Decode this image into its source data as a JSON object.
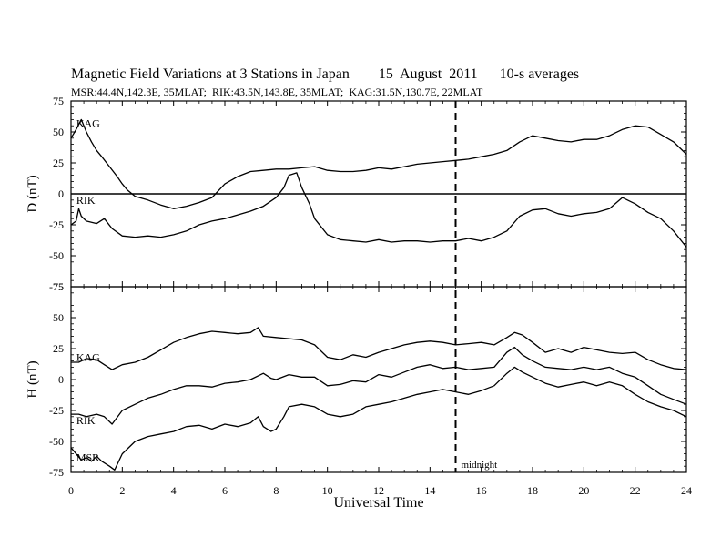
{
  "header": {
    "title": "Magnetic Field Variations at 3 Stations in Japan        15  August  2011      10-s averages",
    "subtitle": "MSR:44.4N,142.3E, 35MLAT;  RIK:43.5N,143.8E, 35MLAT;  KAG:31.5N,130.7E, 22MLAT"
  },
  "chart_data": {
    "type": "line",
    "title": "Magnetic Field Variations at 3 Stations in Japan",
    "date": "15  August  2011",
    "note": "10-s averages",
    "xlabel": "Universal Time",
    "xlim": [
      0,
      24
    ],
    "x_ticks": [
      0,
      2,
      4,
      6,
      8,
      10,
      12,
      14,
      16,
      18,
      20,
      22,
      24
    ],
    "midnight": {
      "x": 15,
      "label": "midnight"
    },
    "panels": [
      {
        "id": "D",
        "ylabel": "D (nT)",
        "ylim": [
          -75,
          75
        ],
        "y_ticks": [
          -75,
          -50,
          -25,
          0,
          25,
          50,
          75
        ],
        "zero_line": true,
        "series": [
          {
            "name": "KAG",
            "label_at": [
              0.1,
              57
            ],
            "x": [
              0,
              0.2,
              0.4,
              0.6,
              0.8,
              1.0,
              1.2,
              1.5,
              1.8,
              2.0,
              2.2,
              2.5,
              3.0,
              3.5,
              4.0,
              4.5,
              5.0,
              5.5,
              6.0,
              6.5,
              7.0,
              7.5,
              8.0,
              8.5,
              9.0,
              9.5,
              10.0,
              10.5,
              11.0,
              11.5,
              12.0,
              12.5,
              13.0,
              13.5,
              14.0,
              14.5,
              15.0,
              15.5,
              16.0,
              16.5,
              17.0,
              17.5,
              18.0,
              18.5,
              19.0,
              19.5,
              20.0,
              20.5,
              21.0,
              21.5,
              22.0,
              22.5,
              23.0,
              23.5,
              24.0
            ],
            "y": [
              45,
              52,
              60,
              50,
              42,
              35,
              30,
              22,
              14,
              8,
              3,
              -2,
              -5,
              -9,
              -12,
              -10,
              -7,
              -3,
              8,
              14,
              18,
              19,
              20,
              20,
              21,
              22,
              19,
              18,
              18,
              19,
              21,
              20,
              22,
              24,
              25,
              26,
              27,
              28,
              30,
              32,
              35,
              42,
              47,
              45,
              43,
              42,
              44,
              44,
              47,
              52,
              55,
              54,
              48,
              42,
              32
            ]
          },
          {
            "name": "RIK",
            "label_at": [
              0.1,
              -5
            ],
            "x": [
              0,
              0.2,
              0.3,
              0.4,
              0.6,
              1.0,
              1.3,
              1.6,
              2.0,
              2.5,
              3.0,
              3.5,
              4.0,
              4.5,
              5.0,
              5.5,
              6.0,
              6.5,
              7.0,
              7.5,
              8.0,
              8.3,
              8.5,
              8.8,
              9.0,
              9.3,
              9.5,
              10.0,
              10.5,
              11.0,
              11.5,
              12.0,
              12.5,
              13.0,
              13.5,
              14.0,
              14.5,
              15.0,
              15.5,
              16.0,
              16.5,
              17.0,
              17.5,
              18.0,
              18.5,
              19.0,
              19.5,
              20.0,
              20.5,
              21.0,
              21.5,
              22.0,
              22.5,
              23.0,
              23.5,
              24.0
            ],
            "y": [
              -25,
              -22,
              -12,
              -18,
              -22,
              -24,
              -20,
              -28,
              -34,
              -35,
              -34,
              -35,
              -33,
              -30,
              -25,
              -22,
              -20,
              -17,
              -14,
              -10,
              -3,
              5,
              15,
              17,
              5,
              -8,
              -20,
              -33,
              -37,
              -38,
              -39,
              -37,
              -39,
              -38,
              -38,
              -39,
              -38,
              -38,
              -36,
              -38,
              -35,
              -30,
              -18,
              -13,
              -12,
              -16,
              -18,
              -16,
              -15,
              -12,
              -3,
              -8,
              -15,
              -20,
              -30,
              -43
            ]
          }
        ]
      },
      {
        "id": "H",
        "ylabel": "H (nT)",
        "ylim": [
          -75,
          75
        ],
        "y_ticks": [
          -75,
          -50,
          -25,
          0,
          25,
          50,
          75
        ],
        "zero_line": false,
        "series": [
          {
            "name": "KAG",
            "label_at": [
              0.1,
              18
            ],
            "x": [
              0,
              0.3,
              0.6,
              1.0,
              1.3,
              1.6,
              2.0,
              2.5,
              3.0,
              3.5,
              4.0,
              4.5,
              5.0,
              5.5,
              6.0,
              6.5,
              7.0,
              7.3,
              7.5,
              8.0,
              8.5,
              9.0,
              9.5,
              10.0,
              10.5,
              11.0,
              11.5,
              12.0,
              12.5,
              13.0,
              13.5,
              14.0,
              14.5,
              15.0,
              15.5,
              16.0,
              16.5,
              17.0,
              17.3,
              17.6,
              18.0,
              18.5,
              19.0,
              19.5,
              20.0,
              20.5,
              21.0,
              21.5,
              22.0,
              22.5,
              23.0,
              23.5,
              24.0
            ],
            "y": [
              14,
              14,
              17,
              16,
              12,
              8,
              12,
              14,
              18,
              24,
              30,
              34,
              37,
              39,
              38,
              37,
              38,
              42,
              35,
              34,
              33,
              32,
              28,
              18,
              16,
              20,
              18,
              22,
              25,
              28,
              30,
              31,
              30,
              28,
              29,
              30,
              28,
              34,
              38,
              36,
              30,
              22,
              25,
              22,
              26,
              24,
              22,
              21,
              22,
              16,
              12,
              9,
              8
            ]
          },
          {
            "name": "RIK",
            "label_at": [
              0.1,
              -33
            ],
            "x": [
              0,
              0.3,
              0.6,
              1.0,
              1.3,
              1.6,
              2.0,
              2.5,
              3.0,
              3.5,
              4.0,
              4.5,
              5.0,
              5.5,
              6.0,
              6.5,
              7.0,
              7.5,
              7.8,
              8.0,
              8.5,
              9.0,
              9.5,
              10.0,
              10.5,
              11.0,
              11.5,
              12.0,
              12.5,
              13.0,
              13.5,
              14.0,
              14.5,
              15.0,
              15.5,
              16.0,
              16.5,
              17.0,
              17.3,
              17.6,
              18.0,
              18.5,
              19.0,
              19.5,
              20.0,
              20.5,
              21.0,
              21.5,
              22.0,
              22.5,
              23.0,
              23.5,
              24.0
            ],
            "y": [
              -28,
              -28,
              -30,
              -28,
              -30,
              -36,
              -25,
              -20,
              -15,
              -12,
              -8,
              -5,
              -5,
              -6,
              -3,
              -2,
              0,
              5,
              1,
              0,
              4,
              2,
              2,
              -5,
              -4,
              -1,
              -2,
              4,
              2,
              6,
              10,
              12,
              9,
              10,
              8,
              9,
              10,
              22,
              26,
              20,
              15,
              10,
              9,
              8,
              10,
              8,
              10,
              5,
              2,
              -5,
              -12,
              -16,
              -20
            ]
          },
          {
            "name": "MSR",
            "label_at": [
              0.1,
              -63
            ],
            "x": [
              0,
              0.2,
              0.4,
              0.6,
              0.8,
              1.0,
              1.2,
              1.5,
              1.7,
              2.0,
              2.5,
              3.0,
              3.5,
              4.0,
              4.5,
              5.0,
              5.5,
              6.0,
              6.5,
              7.0,
              7.3,
              7.5,
              7.8,
              8.0,
              8.3,
              8.5,
              9.0,
              9.5,
              10.0,
              10.5,
              11.0,
              11.5,
              12.0,
              12.5,
              13.0,
              13.5,
              14.0,
              14.5,
              15.0,
              15.5,
              16.0,
              16.5,
              17.0,
              17.3,
              17.6,
              18.0,
              18.5,
              19.0,
              19.5,
              20.0,
              20.5,
              21.0,
              21.5,
              22.0,
              22.5,
              23.0,
              23.5,
              24.0
            ],
            "y": [
              -55,
              -60,
              -65,
              -63,
              -66,
              -62,
              -66,
              -70,
              -73,
              -60,
              -50,
              -46,
              -44,
              -42,
              -38,
              -37,
              -40,
              -36,
              -38,
              -35,
              -30,
              -38,
              -42,
              -40,
              -30,
              -22,
              -20,
              -22,
              -28,
              -30,
              -28,
              -22,
              -20,
              -18,
              -15,
              -12,
              -10,
              -8,
              -10,
              -12,
              -9,
              -5,
              5,
              10,
              6,
              2,
              -3,
              -6,
              -4,
              -2,
              -5,
              -2,
              -5,
              -12,
              -18,
              -22,
              -25,
              -30
            ]
          }
        ]
      }
    ]
  }
}
